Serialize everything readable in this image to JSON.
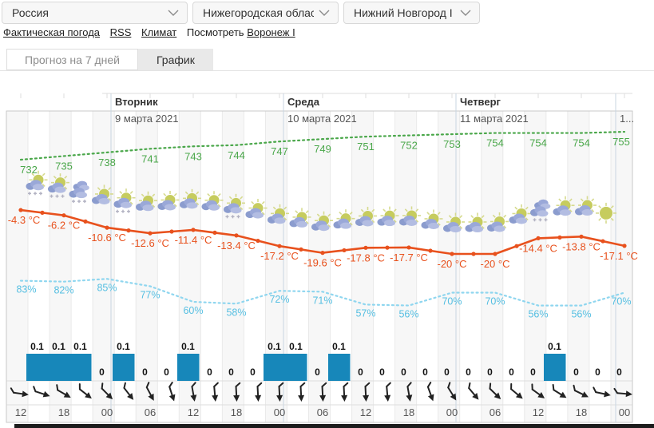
{
  "selects": {
    "country": "Россия",
    "region": "Нижегородская облас",
    "city": "Нижний Новгород I"
  },
  "links": {
    "actual_weather": "Фактическая погода",
    "rss": "RSS",
    "climate": "Климат",
    "watch_label": "Посмотреть",
    "watch_city": "Воронеж I"
  },
  "tabs": {
    "forecast7": "Прогноз на 7 дней",
    "chart": "График"
  },
  "chart_data": {
    "type": "line",
    "days": [
      {
        "name": "Вторник",
        "date": "9 марта 2021"
      },
      {
        "name": "Среда",
        "date": "10 марта 2021"
      },
      {
        "name": "Четверг",
        "date": "11 марта 2021"
      },
      {
        "name": "",
        "date": "1..."
      }
    ],
    "x_times": [
      "12",
      "18",
      "00",
      "06",
      "12",
      "18",
      "00",
      "06",
      "12",
      "18",
      "00",
      "06",
      "12",
      "18",
      "00"
    ],
    "series": [
      {
        "name": "pressure",
        "style": "dotted",
        "color": "#4aa74a",
        "values": [
          732,
          735,
          738,
          741,
          743,
          744,
          747,
          749,
          751,
          752,
          753,
          754,
          754,
          754,
          755
        ],
        "unit": ""
      },
      {
        "name": "temperature",
        "style": "solid",
        "color": "#e8511d",
        "values": [
          -4.3,
          -6.2,
          -10.6,
          -12.6,
          -11.4,
          -13.4,
          -17.2,
          -19.6,
          -17.8,
          -17.7,
          -20,
          -20,
          -14.4,
          -13.8,
          -17.1
        ],
        "unit": " °C"
      },
      {
        "name": "humidity",
        "style": "dotted",
        "color": "#8fd6ef",
        "label_color": "#56bfe2",
        "values": [
          83,
          82,
          85,
          77,
          60,
          58,
          72,
          71,
          57,
          56,
          70,
          70,
          56,
          56,
          70
        ],
        "unit": "%"
      }
    ],
    "precipitation_mm": [
      0.1,
      0.1,
      0.1,
      0,
      0.1,
      0,
      0,
      0.1,
      0,
      0,
      0,
      0.1,
      0.1,
      0,
      0.1,
      0,
      0,
      0,
      0,
      0,
      0,
      0,
      0,
      0,
      0.1,
      0,
      0,
      0
    ],
    "wind_angles_deg": [
      8,
      18,
      30,
      38,
      45,
      52,
      62,
      72,
      80,
      85,
      87,
      87,
      87,
      87,
      87,
      87,
      87,
      85,
      80,
      70,
      58,
      50,
      44,
      40,
      36,
      32,
      26,
      12,
      5
    ],
    "weather_icons": [
      "sun-cloud-snow",
      "sun-cloud-snow",
      "clouds-snow",
      "sun-cloud",
      "sun-cloud-snow",
      "sun-cloud",
      "sun-cloud",
      "sun-cloud",
      "sun-cloud",
      "sun-cloud-snow",
      "sun-cloud",
      "sun-cloud",
      "sun-cloud",
      "sun-cloud",
      "sun-cloud",
      "sun-cloud",
      "sun-cloud",
      "sun-cloud",
      "sun-cloud",
      "sun-cloud",
      "sun-cloud",
      "sun-cloud",
      "sun-cloud",
      "clouds-snow",
      "sun-cloud",
      "sun-cloud",
      "sun"
    ],
    "colors": {
      "bars": "#1787ba",
      "wind": "#222222",
      "grid_line": "#e9e9e9",
      "grid_stripe": "#f7f7f7",
      "plot_border": "#c9c9c9",
      "day_separator": "#c9d6e2",
      "axis_text": "#555555",
      "day_name_text": "#333333",
      "bar_label_text": "#111111"
    },
    "legend_position": "none",
    "grid": true
  }
}
